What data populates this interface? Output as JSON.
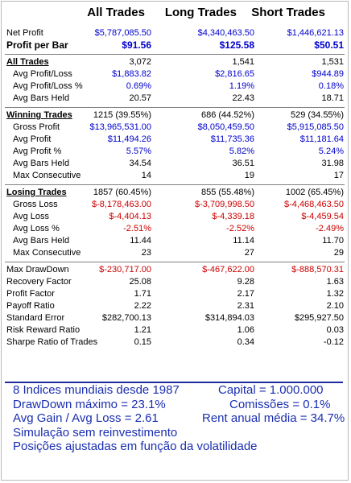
{
  "headers": {
    "all": "All Trades",
    "long": "Long Trades",
    "short": "Short Trades"
  },
  "top": {
    "net_profit": {
      "label": "Net Profit",
      "all": "$5,787,085.50",
      "long": "$4,340,463.50",
      "short": "$1,446,621.13"
    },
    "profit_per_bar": {
      "label": "Profit per Bar",
      "all": "$91.56",
      "long": "$125.58",
      "short": "$50.51"
    }
  },
  "all_trades": {
    "title": "All Trades",
    "all": "3,072",
    "long": "1,541",
    "short": "1,531",
    "rows": [
      {
        "label": "Avg Profit/Loss",
        "all": "$1,883.82",
        "long": "$2,816.65",
        "short": "$944.89"
      },
      {
        "label": "Avg Profit/Loss %",
        "all": "0.69%",
        "long": "1.19%",
        "short": "0.18%"
      },
      {
        "label": "Avg Bars Held",
        "all": "20.57",
        "long": "22.43",
        "short": "18.71"
      }
    ]
  },
  "winning": {
    "title": "Winning Trades",
    "all": "1215 (39.55%)",
    "long": "686 (44.52%)",
    "short": "529 (34.55%)",
    "rows": [
      {
        "label": "Gross Profit",
        "all": "$13,965,531.00",
        "long": "$8,050,459.50",
        "short": "$5,915,085.50"
      },
      {
        "label": "Avg Profit",
        "all": "$11,494.26",
        "long": "$11,735.36",
        "short": "$11,181.64"
      },
      {
        "label": "Avg Profit %",
        "all": "5.57%",
        "long": "5.82%",
        "short": "5.24%"
      },
      {
        "label": "Avg Bars Held",
        "all": "34.54",
        "long": "36.51",
        "short": "31.98"
      },
      {
        "label": "Max Consecutive",
        "all": "14",
        "long": "19",
        "short": "17"
      }
    ]
  },
  "losing": {
    "title": "Losing Trades",
    "all": "1857 (60.45%)",
    "long": "855 (55.48%)",
    "short": "1002 (65.45%)",
    "rows": [
      {
        "label": "Gross Loss",
        "all": "$-8,178,463.00",
        "long": "$-3,709,998.50",
        "short": "$-4,468,463.50"
      },
      {
        "label": "Avg Loss",
        "all": "$-4,404.13",
        "long": "$-4,339.18",
        "short": "$-4,459.54"
      },
      {
        "label": "Avg Loss %",
        "all": "-2.51%",
        "long": "-2.52%",
        "short": "-2.49%"
      },
      {
        "label": "Avg Bars Held",
        "all": "11.44",
        "long": "11.14",
        "short": "11.70"
      },
      {
        "label": "Max Consecutive",
        "all": "23",
        "long": "27",
        "short": "29"
      }
    ]
  },
  "stats": [
    {
      "label": "Max DrawDown",
      "all": "$-230,717.00",
      "long": "$-467,622.00",
      "short": "$-888,570.31"
    },
    {
      "label": "Recovery Factor",
      "all": "25.08",
      "long": "9.28",
      "short": "1.63"
    },
    {
      "label": "Profit Factor",
      "all": "1.71",
      "long": "2.17",
      "short": "1.32"
    },
    {
      "label": "Payoff Ratio",
      "all": "2.22",
      "long": "2.31",
      "short": "2.10"
    },
    {
      "label": "Standard Error",
      "all": "$282,700.13",
      "long": "$314,894.03",
      "short": "$295,927.50"
    },
    {
      "label": "Risk Reward Ratio",
      "all": "1.21",
      "long": "1.06",
      "short": "0.03"
    },
    {
      "label": "Sharpe Ratio of Trades",
      "all": "0.15",
      "long": "0.34",
      "short": "-0.12"
    }
  ],
  "notes": {
    "line1_left": "8 Indices mundiais desde 1987",
    "line1_right": "Capital = 1.000.000",
    "line2_left": "DrawDown máximo = 23.1%",
    "line2_right": "Comissões = 0.1%",
    "line3_left": "Avg Gain / Avg Loss = 2.61",
    "line3_right": "Rent anual média = 34.7%",
    "line4": "Simulação sem reinvestimento",
    "line5": "Posições ajustadas em função da volatilidade"
  }
}
